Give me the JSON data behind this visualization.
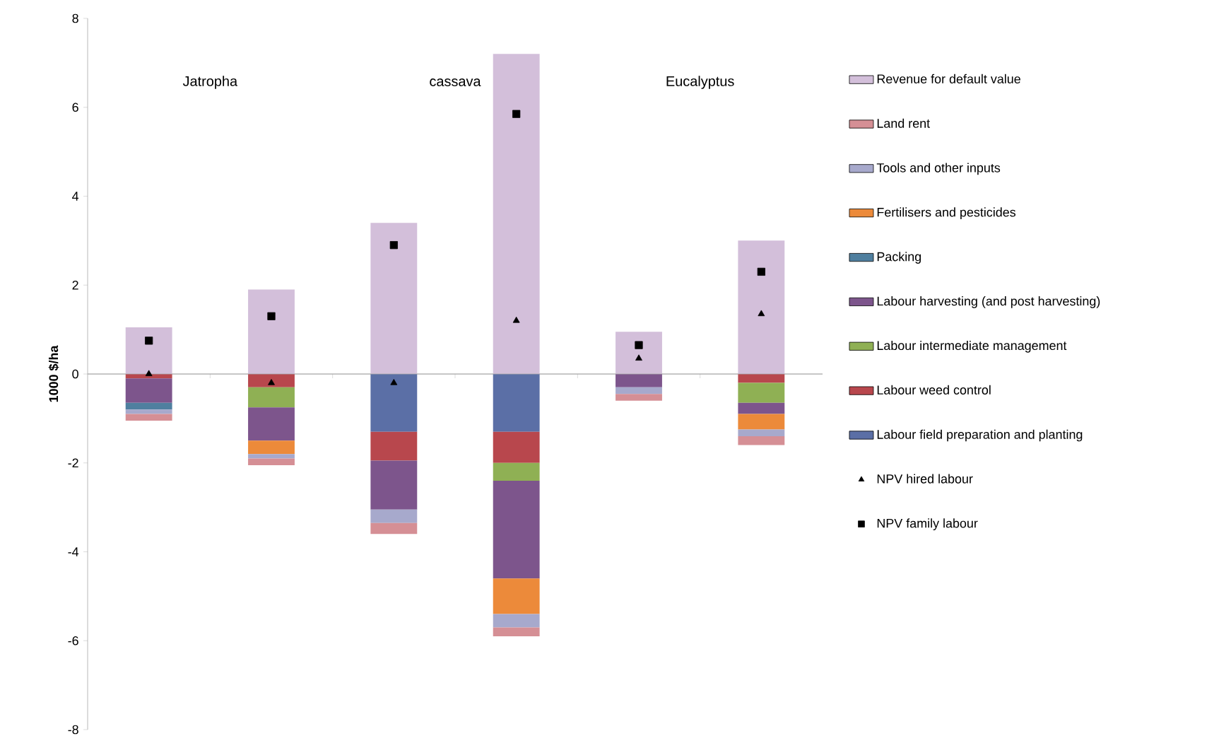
{
  "chart_data": {
    "type": "bar",
    "stacked": true,
    "ylabel": "1000 $/ha",
    "categories": [
      null,
      null,
      null,
      null,
      null,
      null
    ],
    "ylim": [
      -8,
      8
    ],
    "yticks": [
      -8,
      -6,
      -4,
      -2,
      0,
      2,
      4,
      6,
      8
    ],
    "legend": "right",
    "annotations": [
      "Jatropha",
      "cassava",
      "Eucalyptus"
    ],
    "series": [
      {
        "name": "Labour field preparation and planting",
        "color": "#5b6fa6",
        "values": [
          null,
          null,
          -1.3,
          -1.3,
          null,
          null
        ]
      },
      {
        "name": "Labour weed control",
        "color": "#b8474d",
        "values": [
          -0.1,
          -0.3,
          -0.65,
          -0.7,
          null,
          -0.2
        ]
      },
      {
        "name": "Labour intermediate management",
        "color": "#8fb054",
        "values": [
          null,
          -0.45,
          null,
          -0.4,
          null,
          -0.45
        ]
      },
      {
        "name": "Labour harvesting (and post harvesting)",
        "color": "#7d558c",
        "values": [
          -0.55,
          -0.75,
          -1.1,
          -2.2,
          -0.3,
          -0.25
        ]
      },
      {
        "name": "Packing",
        "color": "#4f7f9f",
        "values": [
          -0.15,
          null,
          null,
          null,
          null,
          null
        ]
      },
      {
        "name": "Fertilisers and pesticides",
        "color": "#ec8a3a",
        "values": [
          null,
          -0.3,
          null,
          -0.8,
          null,
          -0.35
        ]
      },
      {
        "name": "Tools and other inputs",
        "color": "#a7a9cc",
        "values": [
          -0.1,
          -0.1,
          -0.3,
          -0.3,
          -0.15,
          -0.15
        ]
      },
      {
        "name": "Land rent",
        "color": "#d58f95",
        "values": [
          -0.15,
          -0.15,
          -0.25,
          -0.2,
          -0.15,
          -0.2
        ]
      },
      {
        "name": "Revenue for default value",
        "color": "#d3bfda",
        "values": [
          1.05,
          1.9,
          3.4,
          7.2,
          0.95,
          3.0
        ]
      },
      {
        "name": "NPV hired labour",
        "type": "scatter",
        "marker": "triangle",
        "color": "#000000",
        "values": [
          0,
          -0.2,
          -0.2,
          1.2,
          0.35,
          1.35
        ]
      },
      {
        "name": "NPV family labour",
        "type": "scatter",
        "marker": "square",
        "color": "#000000",
        "values": [
          0.75,
          1.3,
          2.9,
          5.85,
          0.65,
          2.3
        ]
      }
    ]
  }
}
